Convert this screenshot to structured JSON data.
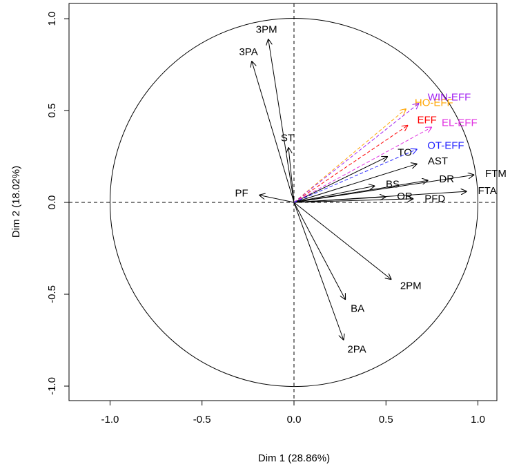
{
  "chart_data": {
    "type": "correlation-circle",
    "x_label": "Dim 1 (28.86%)",
    "y_label": "Dim 2 (18.02%)",
    "xlim": [
      -1.223,
      1.103
    ],
    "ylim": [
      -1.079,
      1.083
    ],
    "xticks": [
      {
        "value": -1,
        "label": "-1.0"
      },
      -0.5,
      {
        "value": 0,
        "label": "0.0"
      },
      0.5,
      {
        "value": 1,
        "label": "1.0"
      }
    ],
    "yticks": [
      {
        "value": -1,
        "label": "-1.0"
      },
      -0.5,
      {
        "value": 0,
        "label": "0.0"
      },
      0.5,
      {
        "value": 1,
        "label": "1.0"
      }
    ],
    "variables": [
      {
        "name": "3PM",
        "x": -0.14,
        "y": 0.89,
        "color": "#000000",
        "dashed": false
      },
      {
        "name": "3PA",
        "x": -0.23,
        "y": 0.77,
        "color": "#000000",
        "dashed": false
      },
      {
        "name": "ST",
        "x": -0.03,
        "y": 0.3,
        "color": "#000000",
        "dashed": false
      },
      {
        "name": "PF",
        "x": -0.19,
        "y": 0.04,
        "color": "#000000",
        "dashed": false
      },
      {
        "name": "TO",
        "x": 0.51,
        "y": 0.25,
        "color": "#000000",
        "dashed": false
      },
      {
        "name": "AST",
        "x": 0.67,
        "y": 0.21,
        "color": "#000000",
        "dashed": false
      },
      {
        "name": "DR",
        "x": 0.73,
        "y": 0.12,
        "color": "#000000",
        "dashed": false
      },
      {
        "name": "BS",
        "x": 0.44,
        "y": 0.09,
        "color": "#000000",
        "dashed": false
      },
      {
        "name": "FTM",
        "x": 0.98,
        "y": 0.15,
        "color": "#000000",
        "dashed": false
      },
      {
        "name": "FTA",
        "x": 0.94,
        "y": 0.06,
        "color": "#000000",
        "dashed": false
      },
      {
        "name": "PFD",
        "x": 0.65,
        "y": 0.02,
        "color": "#000000",
        "dashed": false
      },
      {
        "name": "OR",
        "x": 0.5,
        "y": 0.03,
        "color": "#000000",
        "dashed": false
      },
      {
        "name": "2PM",
        "x": 0.53,
        "y": -0.42,
        "color": "#000000",
        "dashed": false
      },
      {
        "name": "BA",
        "x": 0.28,
        "y": -0.53,
        "color": "#000000",
        "dashed": false
      },
      {
        "name": "2PA",
        "x": 0.27,
        "y": -0.75,
        "color": "#000000",
        "dashed": false
      },
      {
        "name": "HO-EFF",
        "x": 0.61,
        "y": 0.51,
        "color": "#FFA500",
        "dashed": true
      },
      {
        "name": "EFF",
        "x": 0.62,
        "y": 0.42,
        "color": "#FF0000",
        "dashed": true
      },
      {
        "name": "WIN-EFF",
        "x": 0.68,
        "y": 0.54,
        "color": "#A020F0",
        "dashed": true
      },
      {
        "name": "EL-EFF",
        "x": 0.75,
        "y": 0.41,
        "color": "#E030E0",
        "dashed": true
      },
      {
        "name": "OT-EFF",
        "x": 0.67,
        "y": 0.29,
        "color": "#2020FF",
        "dashed": true
      }
    ]
  }
}
